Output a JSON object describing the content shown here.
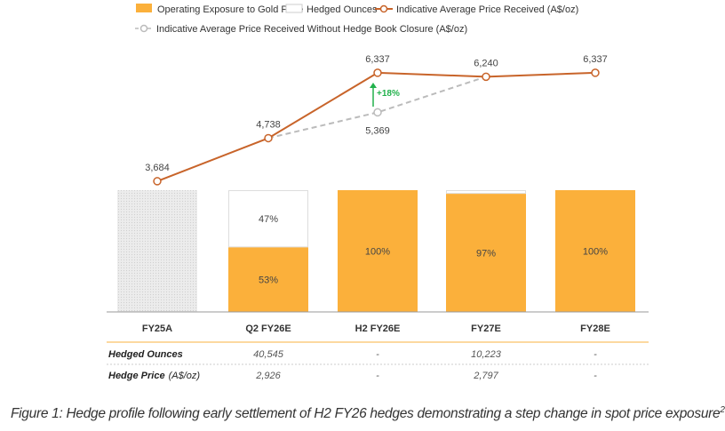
{
  "chart_data": {
    "type": "bar+line",
    "categories": [
      "FY25A",
      "Q2 FY26E",
      "H2 FY26E",
      "FY27E",
      "FY28E"
    ],
    "legend": {
      "operating": "Operating Exposure to Gold Price",
      "hedged": "Hedged Ounces",
      "price": "Indicative Average Price Received (A$/oz)",
      "price_no_closure": "Indicative Average Price Received Without Hedge Book Closure (A$/oz)"
    },
    "series": [
      {
        "name": "Operating Exposure to Gold Price",
        "unit": "%",
        "values": [
          null,
          53,
          100,
          97,
          100
        ],
        "labels": [
          "",
          "53%",
          "100%",
          "97%",
          "100%"
        ]
      },
      {
        "name": "Hedged Ounces",
        "unit": "%",
        "values": [
          null,
          47,
          0,
          3,
          0
        ],
        "labels": [
          "",
          "47%",
          "",
          "",
          ""
        ]
      },
      {
        "name": "Indicative Average Price Received (A$/oz)",
        "values": [
          3684,
          4738,
          6337,
          6240,
          6337
        ],
        "labels": [
          "3,684",
          "4,738",
          "6,337",
          "6,240",
          "6,337"
        ]
      },
      {
        "name": "Indicative Average Price Received Without Hedge Book Closure (A$/oz)",
        "values": [
          null,
          4738,
          5369,
          6240,
          null
        ],
        "labels": [
          "",
          "",
          "5,369",
          "",
          ""
        ]
      }
    ],
    "annotation": "+18%",
    "colors": {
      "operating": "#fbb03b",
      "hedged": "#ffffff",
      "price": "#c8642a",
      "price_no_closure": "#bbbbbb",
      "actual": "#e6e6e6",
      "arrow": "#22b14c",
      "table_rule": "#fcd9a0"
    }
  },
  "table": {
    "rows": [
      {
        "label": "Hedged Ounces",
        "unit": "",
        "values": [
          "",
          "40,545",
          "-",
          "10,223",
          "-"
        ]
      },
      {
        "label": "Hedge Price",
        "unit": "(A$/oz)",
        "values": [
          "",
          "2,926",
          "-",
          "2,797",
          "-"
        ]
      }
    ]
  },
  "caption": "Figure 1: Hedge profile following early settlement of H2 FY26 hedges demonstrating a step change in spot price exposure",
  "caption_sup": "2"
}
